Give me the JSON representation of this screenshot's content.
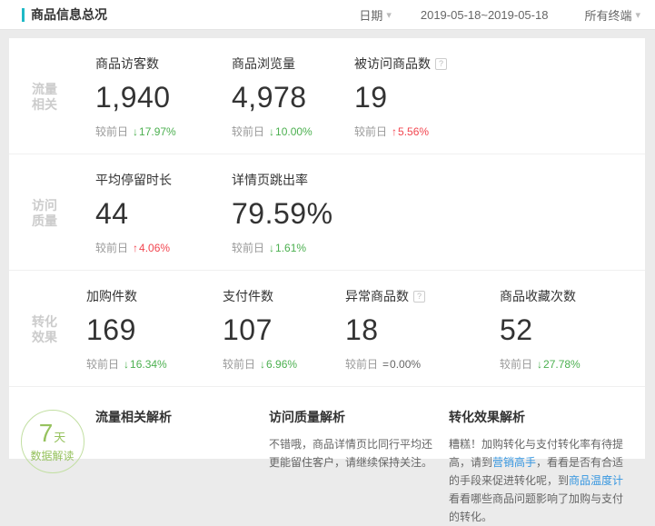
{
  "header": {
    "title": "商品信息总况",
    "date_filter_label": "日期",
    "date_range": "2019-05-18~2019-05-18",
    "terminal_filter": "所有终端"
  },
  "icons": {
    "chevron_down": "▾",
    "help": "?"
  },
  "compare_label": "较前日",
  "colors": {
    "accent_teal": "#1fb9c6",
    "delta_down_green": "#4cb050",
    "delta_up_red": "#f2454f",
    "delta_flat_gray": "#666666",
    "link_blue": "#3596e0",
    "badge_green": "#96c25e",
    "category_gray": "#cccccc"
  },
  "sections": [
    {
      "category_lines": [
        "流量",
        "相关"
      ],
      "metrics": [
        {
          "label": "商品访客数",
          "value": "1,940",
          "arrow": "↓",
          "delta": "17.97%",
          "direction": "down"
        },
        {
          "label": "商品浏览量",
          "value": "4,978",
          "arrow": "↓",
          "delta": "10.00%",
          "direction": "down"
        },
        {
          "label": "被访问商品数",
          "value": "19",
          "arrow": "↑",
          "delta": "5.56%",
          "direction": "up"
        }
      ]
    },
    {
      "category_lines": [
        "访问",
        "质量"
      ],
      "metrics": [
        {
          "label": "平均停留时长",
          "value": "44",
          "arrow": "↑",
          "delta": "4.06%",
          "direction": "up"
        },
        {
          "label": "详情页跳出率",
          "value": "79.59%",
          "arrow": "↓",
          "delta": "1.61%",
          "direction": "down"
        }
      ]
    },
    {
      "category_lines": [
        "转化",
        "效果"
      ],
      "metrics": [
        {
          "label": "加购件数",
          "value": "169",
          "arrow": "↓",
          "delta": "16.34%",
          "direction": "down"
        },
        {
          "label": "支付件数",
          "value": "107",
          "arrow": "↓",
          "delta": "6.96%",
          "direction": "down"
        },
        {
          "label": "异常商品数",
          "value": "18",
          "arrow": "=",
          "delta": "0.00%",
          "direction": "flat"
        },
        {
          "label": "商品收藏次数",
          "value": "52",
          "arrow": "↓",
          "delta": "27.78%",
          "direction": "down"
        }
      ]
    }
  ],
  "insights": {
    "badge": {
      "number": "7",
      "unit": "天",
      "caption": "数据解读"
    },
    "columns": [
      {
        "heading": "流量相关解析"
      },
      {
        "heading": "访问质量解析",
        "body": "不错哦，商品详情页比同行平均还更能留住客户，请继续保持关注。"
      },
      {
        "heading": "转化效果解析",
        "parts": [
          {
            "text": "糟糕！加购转化与支付转化率有待提高，请到"
          },
          {
            "text": "营销高手"
          },
          {
            "text": "，看看是否有合适的手段来促进转化呢，到"
          },
          {
            "text": "商品温度计"
          },
          {
            "text": "看看哪些商品问题影响了加购与支付的转化。"
          }
        ]
      }
    ]
  }
}
